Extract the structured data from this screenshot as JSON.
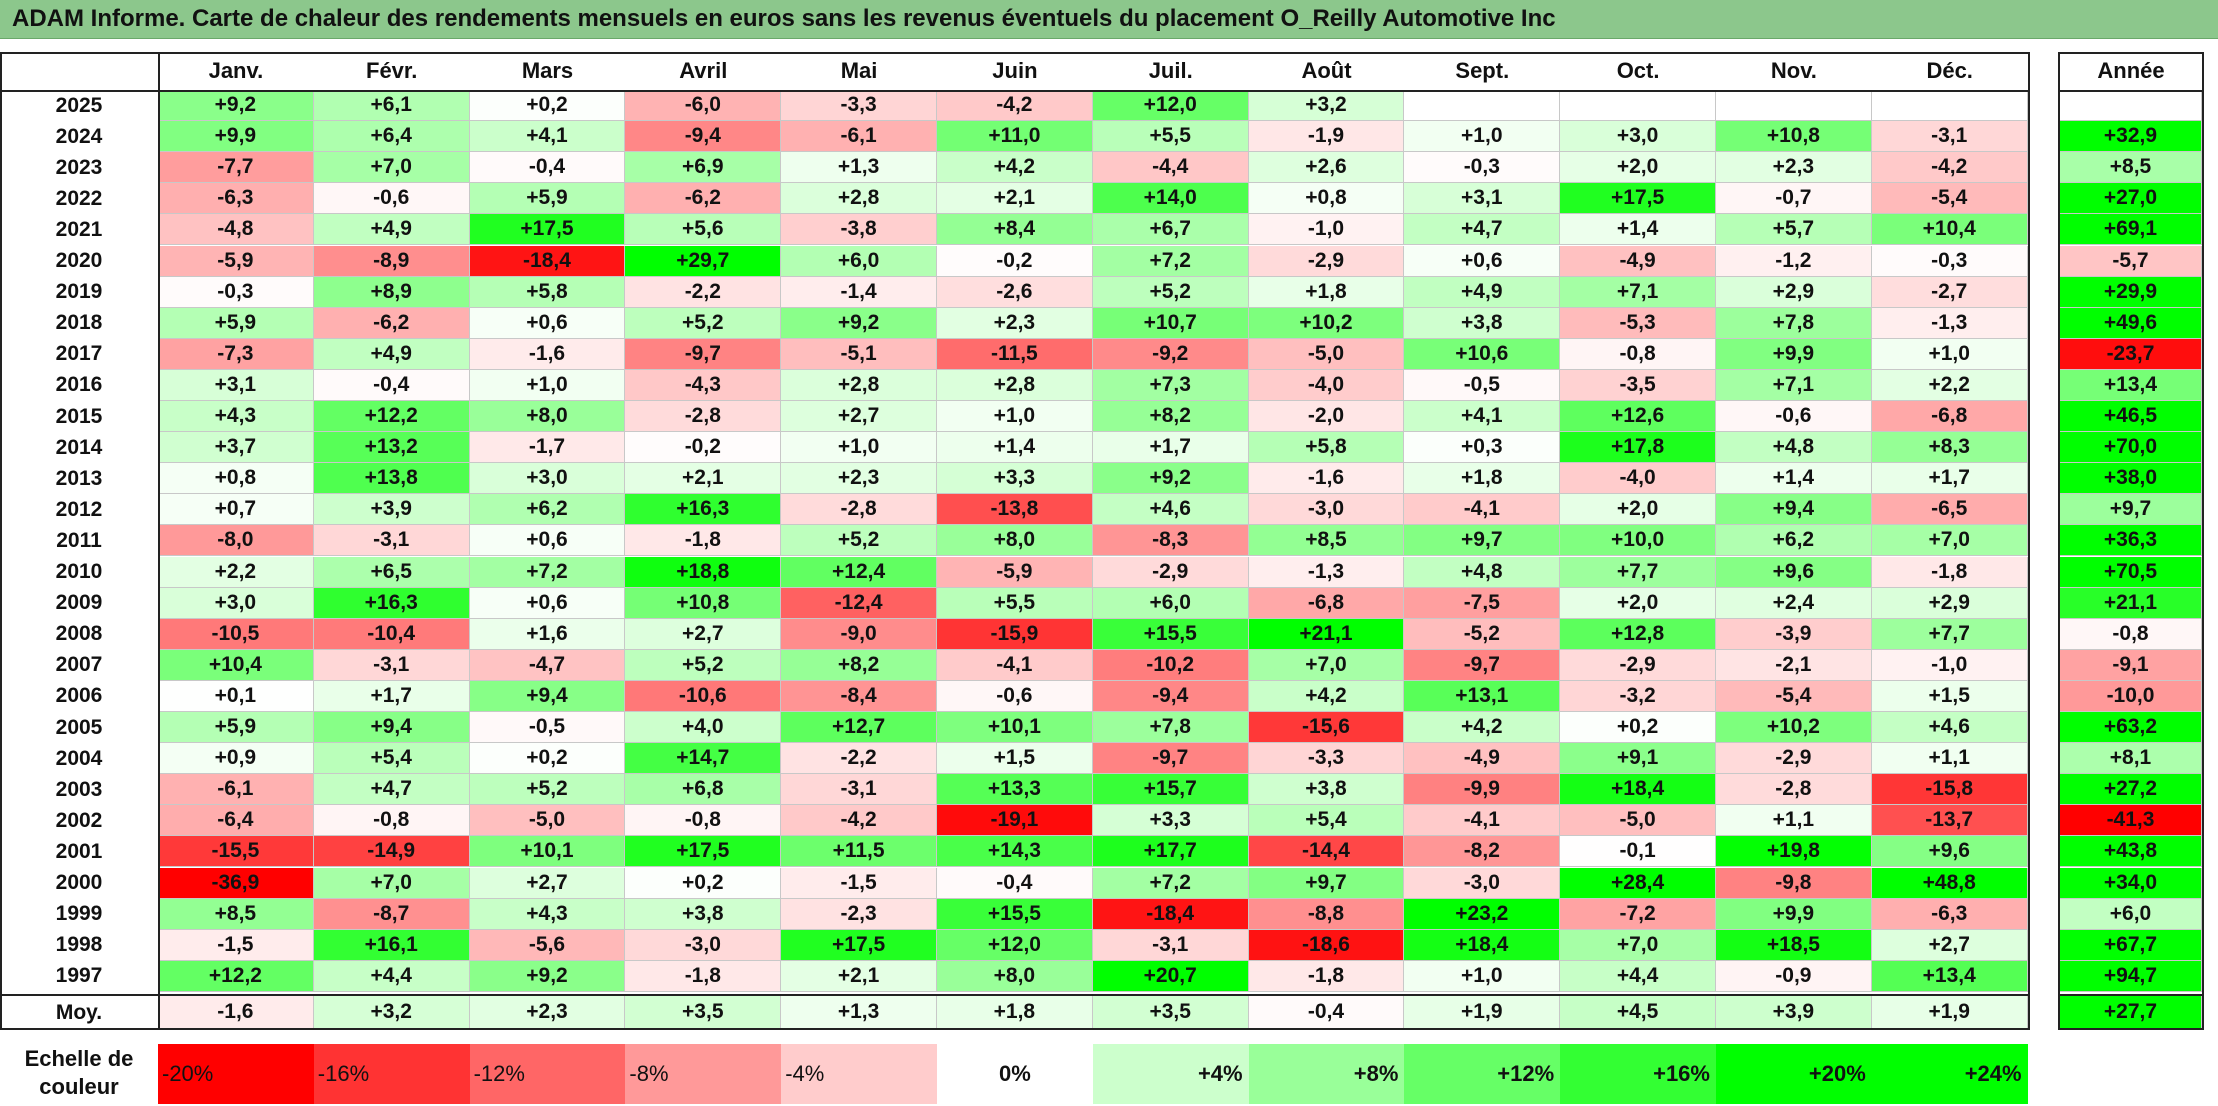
{
  "title": "ADAM Informe. Carte de chaleur des rendements mensuels en euros sans les revenus éventuels du placement O_Reilly Automotive Inc",
  "chart_data": {
    "type": "heatmap",
    "title": "ADAM Informe. Carte de chaleur des rendements mensuels en euros sans les revenus éventuels du placement O_Reilly Automotive Inc",
    "columns": [
      "Janv.",
      "Févr.",
      "Mars",
      "Avril",
      "Mai",
      "Juin",
      "Juil.",
      "Août",
      "Sept.",
      "Oct.",
      "Nov.",
      "Déc."
    ],
    "year_column_label": "Année",
    "rows": [
      {
        "year": "2025",
        "values": [
          "+9,2",
          "+6,1",
          "+0,2",
          "-6,0",
          "-3,3",
          "-4,2",
          "+12,0",
          "+3,2",
          "",
          "",
          "",
          ""
        ],
        "annual": ""
      },
      {
        "year": "2024",
        "values": [
          "+9,9",
          "+6,4",
          "+4,1",
          "-9,4",
          "-6,1",
          "+11,0",
          "+5,5",
          "-1,9",
          "+1,0",
          "+3,0",
          "+10,8",
          "-3,1"
        ],
        "annual": "+32,9"
      },
      {
        "year": "2023",
        "values": [
          "-7,7",
          "+7,0",
          "-0,4",
          "+6,9",
          "+1,3",
          "+4,2",
          "-4,4",
          "+2,6",
          "-0,3",
          "+2,0",
          "+2,3",
          "-4,2"
        ],
        "annual": "+8,5"
      },
      {
        "year": "2022",
        "values": [
          "-6,3",
          "-0,6",
          "+5,9",
          "-6,2",
          "+2,8",
          "+2,1",
          "+14,0",
          "+0,8",
          "+3,1",
          "+17,5",
          "-0,7",
          "-5,4"
        ],
        "annual": "+27,0"
      },
      {
        "year": "2021",
        "values": [
          "-4,8",
          "+4,9",
          "+17,5",
          "+5,6",
          "-3,8",
          "+8,4",
          "+6,7",
          "-1,0",
          "+4,7",
          "+1,4",
          "+5,7",
          "+10,4"
        ],
        "annual": "+69,1"
      },
      {
        "year": "2020",
        "values": [
          "-5,9",
          "-8,9",
          "-18,4",
          "+29,7",
          "+6,0",
          "-0,2",
          "+7,2",
          "-2,9",
          "+0,6",
          "-4,9",
          "-1,2",
          "-0,3"
        ],
        "annual": "-5,7"
      },
      {
        "year": "2019",
        "values": [
          "-0,3",
          "+8,9",
          "+5,8",
          "-2,2",
          "-1,4",
          "-2,6",
          "+5,2",
          "+1,8",
          "+4,9",
          "+7,1",
          "+2,9",
          "-2,7"
        ],
        "annual": "+29,9"
      },
      {
        "year": "2018",
        "values": [
          "+5,9",
          "-6,2",
          "+0,6",
          "+5,2",
          "+9,2",
          "+2,3",
          "+10,7",
          "+10,2",
          "+3,8",
          "-5,3",
          "+7,8",
          "-1,3"
        ],
        "annual": "+49,6"
      },
      {
        "year": "2017",
        "values": [
          "-7,3",
          "+4,9",
          "-1,6",
          "-9,7",
          "-5,1",
          "-11,5",
          "-9,2",
          "-5,0",
          "+10,6",
          "-0,8",
          "+9,9",
          "+1,0"
        ],
        "annual": "-23,7"
      },
      {
        "year": "2016",
        "values": [
          "+3,1",
          "-0,4",
          "+1,0",
          "-4,3",
          "+2,8",
          "+2,8",
          "+7,3",
          "-4,0",
          "-0,5",
          "-3,5",
          "+7,1",
          "+2,2"
        ],
        "annual": "+13,4"
      },
      {
        "year": "2015",
        "values": [
          "+4,3",
          "+12,2",
          "+8,0",
          "-2,8",
          "+2,7",
          "+1,0",
          "+8,2",
          "-2,0",
          "+4,1",
          "+12,6",
          "-0,6",
          "-6,8"
        ],
        "annual": "+46,5"
      },
      {
        "year": "2014",
        "values": [
          "+3,7",
          "+13,2",
          "-1,7",
          "-0,2",
          "+1,0",
          "+1,4",
          "+1,7",
          "+5,8",
          "+0,3",
          "+17,8",
          "+4,8",
          "+8,3"
        ],
        "annual": "+70,0"
      },
      {
        "year": "2013",
        "values": [
          "+0,8",
          "+13,8",
          "+3,0",
          "+2,1",
          "+2,3",
          "+3,3",
          "+9,2",
          "-1,6",
          "+1,8",
          "-4,0",
          "+1,4",
          "+1,7"
        ],
        "annual": "+38,0"
      },
      {
        "year": "2012",
        "values": [
          "+0,7",
          "+3,9",
          "+6,2",
          "+16,3",
          "-2,8",
          "-13,8",
          "+4,6",
          "-3,0",
          "-4,1",
          "+2,0",
          "+9,4",
          "-6,5"
        ],
        "annual": "+9,7"
      },
      {
        "year": "2011",
        "values": [
          "-8,0",
          "-3,1",
          "+0,6",
          "-1,8",
          "+5,2",
          "+8,0",
          "-8,3",
          "+8,5",
          "+9,7",
          "+10,0",
          "+6,2",
          "+7,0"
        ],
        "annual": "+36,3"
      },
      {
        "year": "2010",
        "values": [
          "+2,2",
          "+6,5",
          "+7,2",
          "+18,8",
          "+12,4",
          "-5,9",
          "-2,9",
          "-1,3",
          "+4,8",
          "+7,7",
          "+9,6",
          "-1,8"
        ],
        "annual": "+70,5"
      },
      {
        "year": "2009",
        "values": [
          "+3,0",
          "+16,3",
          "+0,6",
          "+10,8",
          "-12,4",
          "+5,5",
          "+6,0",
          "-6,8",
          "-7,5",
          "+2,0",
          "+2,4",
          "+2,9"
        ],
        "annual": "+21,1"
      },
      {
        "year": "2008",
        "values": [
          "-10,5",
          "-10,4",
          "+1,6",
          "+2,7",
          "-9,0",
          "-15,9",
          "+15,5",
          "+21,1",
          "-5,2",
          "+12,8",
          "-3,9",
          "+7,7"
        ],
        "annual": "-0,8"
      },
      {
        "year": "2007",
        "values": [
          "+10,4",
          "-3,1",
          "-4,7",
          "+5,2",
          "+8,2",
          "-4,1",
          "-10,2",
          "+7,0",
          "-9,7",
          "-2,9",
          "-2,1",
          "-1,0"
        ],
        "annual": "-9,1"
      },
      {
        "year": "2006",
        "values": [
          "+0,1",
          "+1,7",
          "+9,4",
          "-10,6",
          "-8,4",
          "-0,6",
          "-9,4",
          "+4,2",
          "+13,1",
          "-3,2",
          "-5,4",
          "+1,5"
        ],
        "annual": "-10,0"
      },
      {
        "year": "2005",
        "values": [
          "+5,9",
          "+9,4",
          "-0,5",
          "+4,0",
          "+12,7",
          "+10,1",
          "+7,8",
          "-15,6",
          "+4,2",
          "+0,2",
          "+10,2",
          "+4,6"
        ],
        "annual": "+63,2"
      },
      {
        "year": "2004",
        "values": [
          "+0,9",
          "+5,4",
          "+0,2",
          "+14,7",
          "-2,2",
          "+1,5",
          "-9,7",
          "-3,3",
          "-4,9",
          "+9,1",
          "-2,9",
          "+1,1"
        ],
        "annual": "+8,1"
      },
      {
        "year": "2003",
        "values": [
          "-6,1",
          "+4,7",
          "+5,2",
          "+6,8",
          "-3,1",
          "+13,3",
          "+15,7",
          "+3,8",
          "-9,9",
          "+18,4",
          "-2,8",
          "-15,8"
        ],
        "annual": "+27,2"
      },
      {
        "year": "2002",
        "values": [
          "-6,4",
          "-0,8",
          "-5,0",
          "-0,8",
          "-4,2",
          "-19,1",
          "+3,3",
          "+5,4",
          "-4,1",
          "-5,0",
          "+1,1",
          "-13,7"
        ],
        "annual": "-41,3"
      },
      {
        "year": "2001",
        "values": [
          "-15,5",
          "-14,9",
          "+10,1",
          "+17,5",
          "+11,5",
          "+14,3",
          "+17,7",
          "-14,4",
          "-8,2",
          "-0,1",
          "+19,8",
          "+9,6"
        ],
        "annual": "+43,8"
      },
      {
        "year": "2000",
        "values": [
          "-36,9",
          "+7,0",
          "+2,7",
          "+0,2",
          "-1,5",
          "-0,4",
          "+7,2",
          "+9,7",
          "-3,0",
          "+28,4",
          "-9,8",
          "+48,8"
        ],
        "annual": "+34,0"
      },
      {
        "year": "1999",
        "values": [
          "+8,5",
          "-8,7",
          "+4,3",
          "+3,8",
          "-2,3",
          "+15,5",
          "-18,4",
          "-8,8",
          "+23,2",
          "-7,2",
          "+9,9",
          "-6,3"
        ],
        "annual": "+6,0"
      },
      {
        "year": "1998",
        "values": [
          "-1,5",
          "+16,1",
          "-5,6",
          "-3,0",
          "+17,5",
          "+12,0",
          "-3,1",
          "-18,6",
          "+18,4",
          "+7,0",
          "+18,5",
          "+2,7"
        ],
        "annual": "+67,7"
      },
      {
        "year": "1997",
        "values": [
          "+12,2",
          "+4,4",
          "+9,2",
          "-1,8",
          "+2,1",
          "+8,0",
          "+20,7",
          "-1,8",
          "+1,0",
          "+4,4",
          "-0,9",
          "+13,4"
        ],
        "annual": "+94,7"
      }
    ],
    "average": {
      "label": "Moy.",
      "values": [
        "-1,6",
        "+3,2",
        "+2,3",
        "+3,5",
        "+1,3",
        "+1,8",
        "+3,5",
        "-0,4",
        "+1,9",
        "+4,5",
        "+3,9",
        "+1,9"
      ],
      "annual": "+27,7"
    },
    "color_scale": {
      "label_line1": "Echelle de",
      "label_line2": "couleur",
      "steps": [
        "-20%",
        "-16%",
        "-12%",
        "-8%",
        "-4%",
        "0%",
        "+4%",
        "+8%",
        "+12%",
        "+16%",
        "+20%",
        "+24%"
      ],
      "negative_color": "#ff0000",
      "neutral_color": "#ffffff",
      "positive_color": "#00ff00"
    }
  }
}
